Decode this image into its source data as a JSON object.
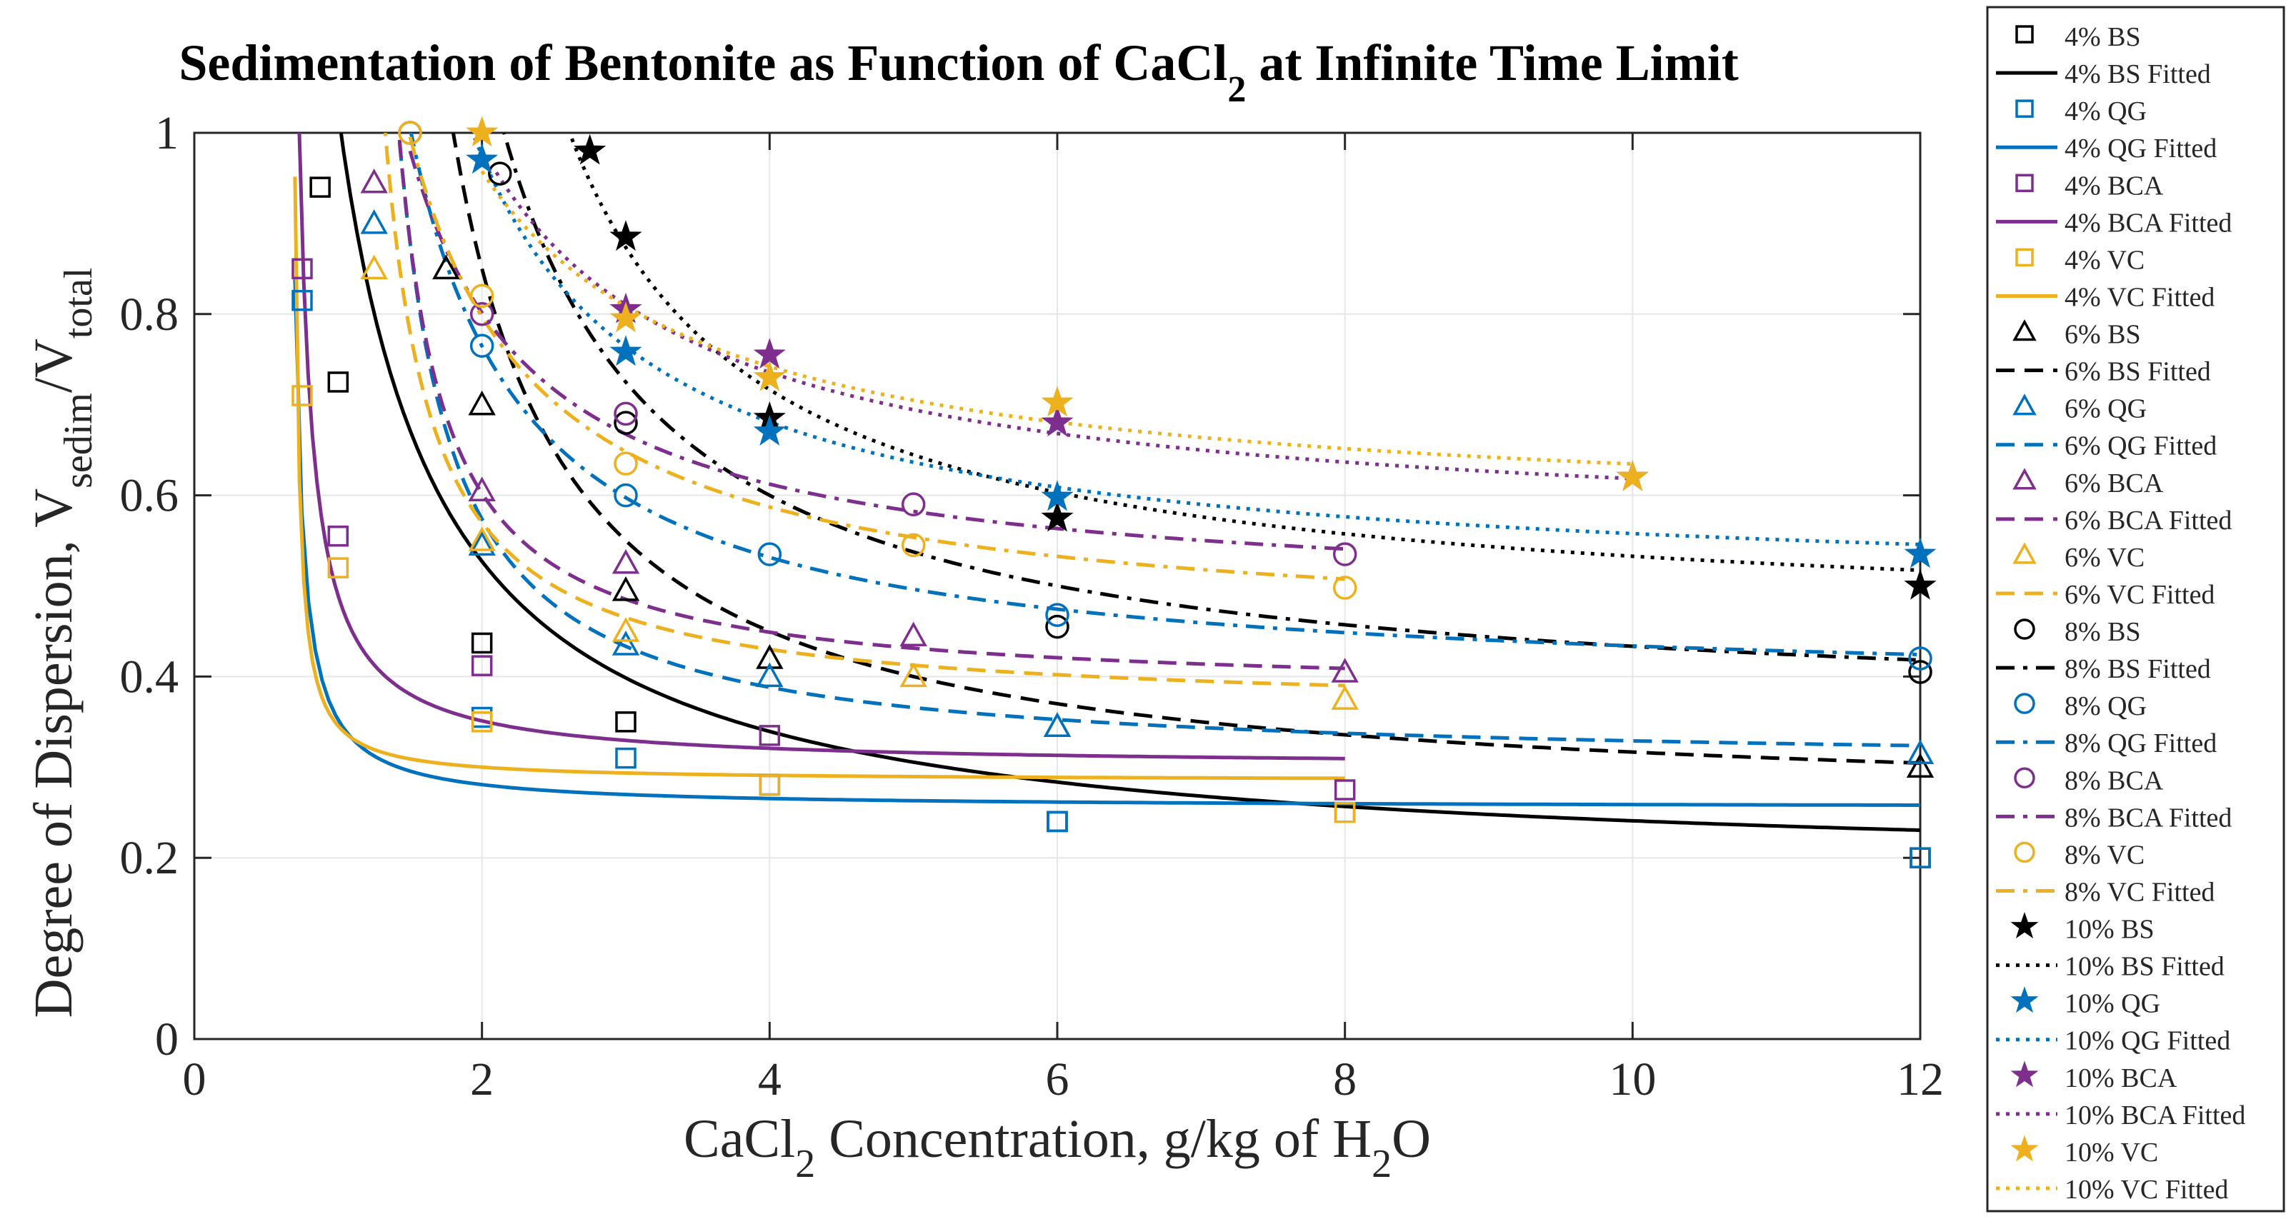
{
  "chart_data": {
    "type": "scatter",
    "title": "Sedimentation of Bentonite as Function of CaCl",
    "title_sub": "2",
    "title_rest": " at Infinite Time Limit",
    "xlabel_parts": [
      "CaCl",
      "2",
      " Concentration, g/kg of H",
      "2",
      "O"
    ],
    "ylabel_parts": [
      "Degree of Dispersion, V",
      "sedim",
      "/V",
      "total"
    ],
    "xlim": [
      0,
      12
    ],
    "ylim": [
      0,
      1
    ],
    "xticks": [
      0,
      2,
      4,
      6,
      8,
      10,
      12
    ],
    "yticks": [
      0,
      0.2,
      0.4,
      0.6,
      0.8,
      1
    ],
    "xtick_labels": [
      "0",
      "2",
      "4",
      "6",
      "8",
      "10",
      "12"
    ],
    "ytick_labels": [
      "0",
      "0.2",
      "0.4",
      "0.6",
      "0.8",
      "1"
    ],
    "grid": true,
    "legend_position": "outside-right",
    "colors": {
      "BS": "#000000",
      "QG": "#0072BD",
      "BCA": "#7E2F8E",
      "VC": "#EDB120"
    },
    "series": [
      {
        "name": "4% BS",
        "group": "BS",
        "marker": "square",
        "dash": "solid",
        "x": [
          0.875,
          1,
          2,
          3,
          4,
          6,
          8,
          12
        ],
        "y": [
          0.94,
          0.725,
          0.437,
          0.35,
          0.28,
          0.24,
          0.25,
          0.2
        ],
        "fit": {
          "a": 0.18,
          "b": 0.59,
          "x0": 0.3,
          "xmin": 0.9,
          "xmax": 12
        }
      },
      {
        "name": "4% QG",
        "group": "QG",
        "marker": "square",
        "dash": "solid",
        "x": [
          0.75,
          1,
          2,
          3,
          4,
          6,
          8,
          12
        ],
        "y": [
          0.815,
          0.555,
          0.355,
          0.31,
          0.28,
          0.24,
          0.25,
          0.2
        ],
        "fit": {
          "a": 0.255,
          "b": 0.035,
          "x0": 0.64,
          "xmin": 0.7,
          "xmax": 12
        }
      },
      {
        "name": "4% BCA",
        "group": "BCA",
        "marker": "square",
        "dash": "solid",
        "x": [
          0.75,
          1,
          2,
          4,
          8
        ],
        "y": [
          0.85,
          0.555,
          0.412,
          0.335,
          0.275
        ],
        "fit": {
          "a": 0.3,
          "b": 0.07,
          "x0": 0.63,
          "xmin": 0.7,
          "xmax": 8
        }
      },
      {
        "name": "4% VC",
        "group": "VC",
        "marker": "square",
        "dash": "solid",
        "x": [
          0.75,
          1,
          2,
          4,
          8
        ],
        "y": [
          0.71,
          0.52,
          0.35,
          0.28,
          0.25
        ],
        "fit": {
          "a": 0.285,
          "b": 0.02,
          "x0": 0.67,
          "xmin": 0.7,
          "xmax": 8
        }
      },
      {
        "name": "6% BS",
        "group": "BS",
        "marker": "triangle",
        "dash": "dashed",
        "x": [
          1.75,
          2,
          3,
          4,
          6,
          12
        ],
        "y": [
          0.85,
          0.7,
          0.495,
          0.42,
          0.345,
          0.3
        ],
        "fit": {
          "a": 0.25,
          "b": 0.6,
          "x0": 1,
          "xmin": 1.5,
          "xmax": 12
        }
      },
      {
        "name": "6% QG",
        "group": "QG",
        "marker": "triangle",
        "dash": "dashed",
        "x": [
          1.25,
          2,
          3,
          4,
          6,
          12
        ],
        "y": [
          0.9,
          0.545,
          0.435,
          0.4,
          0.345,
          0.315
        ],
        "fit": {
          "a": 0.3,
          "b": 0.26,
          "x0": 1.05,
          "xmin": 1.25,
          "xmax": 12
        }
      },
      {
        "name": "6% BCA",
        "group": "BCA",
        "marker": "triangle",
        "dash": "dashed",
        "x": [
          1.25,
          2,
          3,
          5,
          8
        ],
        "y": [
          0.945,
          0.605,
          0.525,
          0.445,
          0.405
        ],
        "fit": {
          "a": 0.38,
          "b": 0.2,
          "x0": 1.1,
          "xmin": 1.25,
          "xmax": 8
        }
      },
      {
        "name": "6% VC",
        "group": "VC",
        "marker": "triangle",
        "dash": "dashed",
        "x": [
          1.25,
          2,
          3,
          5,
          8
        ],
        "y": [
          0.85,
          0.55,
          0.45,
          0.4,
          0.375
        ],
        "fit": {
          "a": 0.36,
          "b": 0.21,
          "x0": 1.0,
          "xmin": 1.2,
          "xmax": 8
        }
      },
      {
        "name": "8% BS",
        "group": "BS",
        "marker": "circle",
        "dash": "dashdot",
        "x": [
          2.125,
          3,
          6,
          12
        ],
        "y": [
          0.955,
          0.68,
          0.455,
          0.405
        ],
        "fit": {
          "a": 0.35,
          "b": 0.75,
          "x0": 1.0,
          "xmin": 2.1,
          "xmax": 12
        }
      },
      {
        "name": "8% QG",
        "group": "QG",
        "marker": "circle",
        "dash": "dashdot",
        "x": [
          1.5,
          2,
          3,
          4,
          6,
          12
        ],
        "y": [
          1.0,
          0.765,
          0.6,
          0.535,
          0.468,
          0.42
        ],
        "fit": {
          "a": 0.38,
          "b": 0.5,
          "x0": 0.7,
          "xmin": 1.5,
          "xmax": 12
        }
      },
      {
        "name": "8% BCA",
        "group": "BCA",
        "marker": "circle",
        "dash": "dashdot",
        "x": [
          1.5,
          2,
          3,
          5,
          8
        ],
        "y": [
          1.0,
          0.8,
          0.69,
          0.59,
          0.535
        ],
        "fit": {
          "a": 0.48,
          "b": 0.45,
          "x0": 0.6,
          "xmin": 1.5,
          "xmax": 8
        }
      },
      {
        "name": "8% VC",
        "group": "VC",
        "marker": "circle",
        "dash": "dashdot",
        "x": [
          1.5,
          2,
          3,
          5,
          8
        ],
        "y": [
          1.0,
          0.82,
          0.635,
          0.545,
          0.498
        ],
        "fit": {
          "a": 0.44,
          "b": 0.5,
          "x0": 0.6,
          "xmin": 1.5,
          "xmax": 8
        }
      },
      {
        "name": "10% BS",
        "group": "BS",
        "marker": "star",
        "dash": "dotted",
        "x": [
          2.75,
          3,
          4,
          6,
          12
        ],
        "y": [
          0.98,
          0.885,
          0.685,
          0.575,
          0.5
        ],
        "fit": {
          "a": 0.45,
          "b": 0.72,
          "x0": 1.3,
          "xmin": 2.6,
          "xmax": 12
        }
      },
      {
        "name": "10% QG",
        "group": "QG",
        "marker": "star",
        "dash": "dotted",
        "x": [
          2,
          3,
          4,
          6,
          12
        ],
        "y": [
          0.97,
          0.758,
          0.67,
          0.598,
          0.535
        ],
        "fit": {
          "a": 0.49,
          "b": 0.63,
          "x0": 0.7,
          "xmin": 1.9,
          "xmax": 12
        }
      },
      {
        "name": "10% BCA",
        "group": "BCA",
        "marker": "star",
        "dash": "dotted",
        "x": [
          3,
          4,
          6,
          10
        ],
        "y": [
          0.805,
          0.755,
          0.68,
          0.62
        ],
        "fit": {
          "a": 0.55,
          "b": 0.65,
          "x0": 0.5,
          "xmin": 2.1,
          "xmax": 10
        }
      },
      {
        "name": "10% VC",
        "group": "VC",
        "marker": "star",
        "dash": "dotted",
        "x": [
          2,
          3,
          4,
          6,
          10
        ],
        "y": [
          1.0,
          0.795,
          0.73,
          0.702,
          0.62
        ],
        "fit": {
          "a": 0.57,
          "b": 0.62,
          "x0": 0.4,
          "xmin": 2.0,
          "xmax": 10
        }
      }
    ],
    "legend": [
      {
        "label": "4% BS",
        "series": 0,
        "kind": "marker"
      },
      {
        "label": "4% BS Fitted",
        "series": 0,
        "kind": "line"
      },
      {
        "label": "4% QG",
        "series": 1,
        "kind": "marker"
      },
      {
        "label": "4% QG Fitted",
        "series": 1,
        "kind": "line"
      },
      {
        "label": "4% BCA",
        "series": 2,
        "kind": "marker"
      },
      {
        "label": "4% BCA Fitted",
        "series": 2,
        "kind": "line"
      },
      {
        "label": "4% VC",
        "series": 3,
        "kind": "marker"
      },
      {
        "label": "4% VC Fitted",
        "series": 3,
        "kind": "line"
      },
      {
        "label": "6% BS",
        "series": 4,
        "kind": "marker"
      },
      {
        "label": "6% BS Fitted",
        "series": 4,
        "kind": "line"
      },
      {
        "label": "6% QG",
        "series": 5,
        "kind": "marker"
      },
      {
        "label": "6% QG Fitted",
        "series": 5,
        "kind": "line"
      },
      {
        "label": "6% BCA",
        "series": 6,
        "kind": "marker"
      },
      {
        "label": "6% BCA Fitted",
        "series": 6,
        "kind": "line"
      },
      {
        "label": "6% VC",
        "series": 7,
        "kind": "marker"
      },
      {
        "label": "6% VC Fitted",
        "series": 7,
        "kind": "line"
      },
      {
        "label": "8% BS",
        "series": 8,
        "kind": "marker"
      },
      {
        "label": "8% BS Fitted",
        "series": 8,
        "kind": "line"
      },
      {
        "label": "8% QG",
        "series": 9,
        "kind": "marker"
      },
      {
        "label": "8% QG Fitted",
        "series": 9,
        "kind": "line"
      },
      {
        "label": "8% BCA",
        "series": 10,
        "kind": "marker"
      },
      {
        "label": "8% BCA Fitted",
        "series": 10,
        "kind": "line"
      },
      {
        "label": "8% VC",
        "series": 11,
        "kind": "marker"
      },
      {
        "label": "8% VC Fitted",
        "series": 11,
        "kind": "line"
      },
      {
        "label": "10% BS",
        "series": 12,
        "kind": "marker"
      },
      {
        "label": "10% BS Fitted",
        "series": 12,
        "kind": "line"
      },
      {
        "label": "10% QG",
        "series": 13,
        "kind": "marker"
      },
      {
        "label": "10% QG Fitted",
        "series": 13,
        "kind": "line"
      },
      {
        "label": "10% BCA",
        "series": 14,
        "kind": "marker"
      },
      {
        "label": "10% BCA Fitted",
        "series": 14,
        "kind": "line"
      },
      {
        "label": "10% VC",
        "series": 15,
        "kind": "marker"
      },
      {
        "label": "10% VC Fitted",
        "series": 15,
        "kind": "line"
      }
    ]
  }
}
